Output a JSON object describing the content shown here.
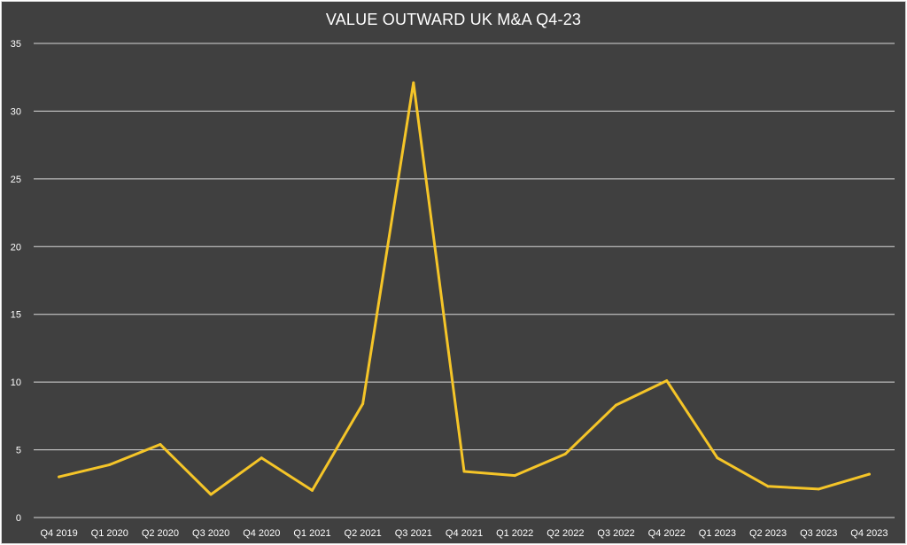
{
  "chart_data": {
    "type": "line",
    "title": "VALUE OUTWARD UK M&A Q4-23",
    "categories": [
      "Q4 2019",
      "Q1 2020",
      "Q2 2020",
      "Q3 2020",
      "Q4 2020",
      "Q1 2021",
      "Q2 2021",
      "Q3 2021",
      "Q4 2021",
      "Q1 2022",
      "Q2 2022",
      "Q3 2022",
      "Q4 2022",
      "Q1 2023",
      "Q2 2023",
      "Q3 2023",
      "Q4 2023"
    ],
    "series": [
      {
        "values": [
          3.0,
          3.9,
          5.4,
          1.7,
          4.4,
          2.0,
          8.4,
          32.1,
          3.4,
          3.1,
          4.7,
          8.3,
          10.1,
          4.4,
          2.3,
          2.1,
          3.2
        ]
      }
    ],
    "ylim": [
      0,
      35
    ],
    "yticks": [
      0,
      5,
      10,
      15,
      20,
      25,
      30,
      35
    ],
    "grid": true,
    "line_color": "#f5c528",
    "background": "#404040",
    "grid_color": "#d9d9d9"
  }
}
